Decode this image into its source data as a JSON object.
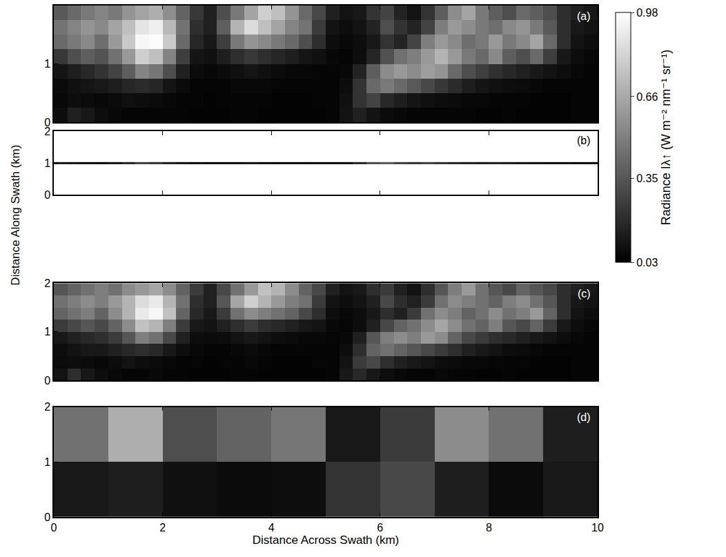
{
  "chart_data": [
    {
      "type": "heatmap",
      "label": "(a)",
      "tick_labels": "y",
      "xlim": [
        0,
        10
      ],
      "ylim": [
        0,
        2
      ],
      "xticks": [
        0,
        2,
        4,
        6,
        8,
        10
      ],
      "yticks": [
        0,
        1,
        2
      ],
      "colorbar": {
        "title": "Radiance Iλ↑ (W m⁻² nm⁻¹ sr⁻¹)",
        "range": [
          0.03,
          0.98
        ],
        "ticks": [
          0.03,
          0.35,
          0.66,
          0.98
        ]
      },
      "x": [
        0,
        0.25,
        0.5,
        0.75,
        1,
        1.25,
        1.5,
        1.75,
        2,
        2.25,
        2.5,
        2.75,
        3,
        3.25,
        3.5,
        3.75,
        4,
        4.25,
        4.5,
        4.75,
        5,
        5.25,
        5.5,
        5.75,
        6,
        6.25,
        6.5,
        6.75,
        7,
        7.25,
        7.5,
        7.75,
        8,
        8.25,
        8.5,
        8.75,
        9,
        9.25,
        9.5,
        9.75,
        10
      ],
      "y": [
        0,
        0.25,
        0.5,
        0.75,
        1,
        1.25,
        1.5,
        1.75,
        2
      ],
      "z": [
        [
          0.08,
          0.15,
          0.12,
          0.08,
          0.06,
          0.05,
          0.05,
          0.05,
          0.05,
          0.05,
          0.04,
          0.04,
          0.04,
          0.05,
          0.05,
          0.04,
          0.04,
          0.04,
          0.04,
          0.04,
          0.05,
          0.1,
          0.15,
          0.1,
          0.07,
          0.06,
          0.05,
          0.05,
          0.05,
          0.05,
          0.05,
          0.04,
          0.04,
          0.05,
          0.04,
          0.04,
          0.04,
          0.04,
          0.05,
          0.05
        ],
        [
          0.06,
          0.08,
          0.07,
          0.06,
          0.07,
          0.09,
          0.08,
          0.07,
          0.06,
          0.05,
          0.05,
          0.04,
          0.05,
          0.05,
          0.05,
          0.05,
          0.04,
          0.04,
          0.04,
          0.05,
          0.05,
          0.09,
          0.22,
          0.28,
          0.18,
          0.14,
          0.11,
          0.09,
          0.08,
          0.07,
          0.06,
          0.06,
          0.05,
          0.05,
          0.05,
          0.04,
          0.04,
          0.04,
          0.05,
          0.05
        ],
        [
          0.07,
          0.09,
          0.11,
          0.12,
          0.14,
          0.17,
          0.19,
          0.17,
          0.11,
          0.07,
          0.05,
          0.05,
          0.05,
          0.06,
          0.06,
          0.06,
          0.05,
          0.05,
          0.05,
          0.05,
          0.05,
          0.08,
          0.22,
          0.42,
          0.48,
          0.42,
          0.36,
          0.3,
          0.24,
          0.19,
          0.14,
          0.11,
          0.09,
          0.08,
          0.07,
          0.06,
          0.05,
          0.05,
          0.05,
          0.05
        ],
        [
          0.11,
          0.14,
          0.18,
          0.22,
          0.28,
          0.38,
          0.52,
          0.47,
          0.32,
          0.15,
          0.07,
          0.06,
          0.07,
          0.09,
          0.11,
          0.09,
          0.07,
          0.06,
          0.06,
          0.05,
          0.05,
          0.06,
          0.16,
          0.38,
          0.55,
          0.6,
          0.55,
          0.62,
          0.58,
          0.42,
          0.32,
          0.26,
          0.21,
          0.18,
          0.15,
          0.12,
          0.1,
          0.08,
          0.06,
          0.05
        ],
        [
          0.24,
          0.32,
          0.38,
          0.34,
          0.45,
          0.6,
          0.8,
          0.74,
          0.52,
          0.26,
          0.11,
          0.09,
          0.14,
          0.2,
          0.24,
          0.2,
          0.17,
          0.14,
          0.11,
          0.09,
          0.06,
          0.05,
          0.08,
          0.17,
          0.33,
          0.45,
          0.5,
          0.6,
          0.7,
          0.6,
          0.48,
          0.42,
          0.54,
          0.38,
          0.32,
          0.42,
          0.26,
          0.12,
          0.08,
          0.06
        ],
        [
          0.42,
          0.48,
          0.54,
          0.44,
          0.6,
          0.78,
          0.95,
          0.97,
          0.78,
          0.42,
          0.17,
          0.12,
          0.26,
          0.48,
          0.58,
          0.54,
          0.48,
          0.42,
          0.32,
          0.2,
          0.08,
          0.06,
          0.08,
          0.12,
          0.22,
          0.16,
          0.28,
          0.5,
          0.6,
          0.54,
          0.44,
          0.48,
          0.6,
          0.48,
          0.54,
          0.64,
          0.42,
          0.2,
          0.1,
          0.08
        ],
        [
          0.46,
          0.52,
          0.58,
          0.54,
          0.64,
          0.74,
          0.88,
          0.92,
          0.72,
          0.46,
          0.2,
          0.15,
          0.38,
          0.7,
          0.85,
          0.74,
          0.64,
          0.52,
          0.46,
          0.25,
          0.1,
          0.08,
          0.1,
          0.16,
          0.32,
          0.22,
          0.16,
          0.28,
          0.5,
          0.6,
          0.55,
          0.48,
          0.44,
          0.54,
          0.58,
          0.48,
          0.36,
          0.2,
          0.12,
          0.1
        ],
        [
          0.36,
          0.42,
          0.48,
          0.52,
          0.48,
          0.58,
          0.64,
          0.68,
          0.56,
          0.4,
          0.24,
          0.15,
          0.32,
          0.48,
          0.64,
          0.8,
          0.74,
          0.58,
          0.42,
          0.3,
          0.15,
          0.1,
          0.12,
          0.22,
          0.28,
          0.16,
          0.1,
          0.22,
          0.38,
          0.55,
          0.64,
          0.48,
          0.38,
          0.32,
          0.42,
          0.38,
          0.32,
          0.2,
          0.15,
          0.12
        ]
      ]
    },
    {
      "type": "heatmap",
      "label": "(b)",
      "tick_labels": "y",
      "ylabel": "Distance Along Swath (km)",
      "xlim": [
        0,
        10
      ],
      "ylim": [
        0,
        2
      ],
      "xticks": [
        0,
        2,
        4,
        6,
        8,
        10
      ],
      "yticks": [
        0,
        1,
        2
      ],
      "x": [
        0,
        0.25,
        0.5,
        0.75,
        1,
        1.25,
        1.5,
        1.75,
        2,
        2.25,
        2.5,
        2.75,
        3,
        3.25,
        3.5,
        3.75,
        4,
        4.25,
        4.5,
        4.75,
        5,
        5.25,
        5.5,
        5.75,
        6,
        6.25,
        6.5,
        6.75,
        7,
        7.25,
        7.5,
        7.75,
        8,
        8.25,
        8.5,
        8.75,
        9,
        9.25,
        9.5,
        9.75,
        10
      ],
      "y": [
        0.97,
        1.03
      ],
      "z": [
        [
          0.1,
          0.08,
          0.06,
          0.05,
          0.08,
          0.15,
          0.25,
          0.2,
          0.12,
          0.08,
          0.06,
          0.05,
          0.05,
          0.06,
          0.08,
          0.06,
          0.05,
          0.05,
          0.05,
          0.06,
          0.05,
          0.06,
          0.15,
          0.3,
          0.35,
          0.25,
          0.2,
          0.25,
          0.2,
          0.15,
          0.12,
          0.1,
          0.12,
          0.1,
          0.08,
          0.07,
          0.06,
          0.06,
          0.05,
          0.05
        ]
      ]
    },
    {
      "type": "heatmap",
      "label": "(c)",
      "tick_labels": "y",
      "xlim": [
        0,
        10
      ],
      "ylim": [
        0,
        2
      ],
      "xticks": [
        0,
        2,
        4,
        6,
        8,
        10
      ],
      "yticks": [
        0,
        1,
        2
      ],
      "x": [
        0,
        0.25,
        0.5,
        0.75,
        1,
        1.25,
        1.5,
        1.75,
        2,
        2.25,
        2.5,
        2.75,
        3,
        3.25,
        3.5,
        3.75,
        4,
        4.25,
        4.5,
        4.75,
        5,
        5.25,
        5.5,
        5.75,
        6,
        6.25,
        6.5,
        6.75,
        7,
        7.25,
        7.5,
        7.75,
        8,
        8.25,
        8.5,
        8.75,
        9,
        9.25,
        9.5,
        9.75,
        10
      ],
      "y": [
        0,
        0.25,
        0.5,
        0.75,
        1,
        1.25,
        1.5,
        1.75,
        2
      ],
      "z": [
        [
          0.1,
          0.2,
          0.12,
          0.08,
          0.06,
          0.05,
          0.05,
          0.06,
          0.05,
          0.05,
          0.04,
          0.04,
          0.04,
          0.05,
          0.05,
          0.04,
          0.04,
          0.04,
          0.04,
          0.04,
          0.05,
          0.12,
          0.18,
          0.12,
          0.08,
          0.06,
          0.05,
          0.05,
          0.06,
          0.05,
          0.05,
          0.04,
          0.04,
          0.05,
          0.04,
          0.04,
          0.04,
          0.04,
          0.05,
          0.05
        ],
        [
          0.07,
          0.08,
          0.07,
          0.06,
          0.08,
          0.1,
          0.08,
          0.07,
          0.06,
          0.05,
          0.05,
          0.04,
          0.05,
          0.05,
          0.06,
          0.05,
          0.04,
          0.04,
          0.04,
          0.05,
          0.05,
          0.1,
          0.25,
          0.3,
          0.2,
          0.15,
          0.12,
          0.1,
          0.08,
          0.07,
          0.06,
          0.06,
          0.05,
          0.05,
          0.05,
          0.04,
          0.04,
          0.04,
          0.05,
          0.05
        ],
        [
          0.08,
          0.1,
          0.12,
          0.12,
          0.15,
          0.18,
          0.2,
          0.18,
          0.12,
          0.08,
          0.06,
          0.05,
          0.05,
          0.06,
          0.07,
          0.06,
          0.05,
          0.05,
          0.05,
          0.05,
          0.05,
          0.08,
          0.2,
          0.4,
          0.45,
          0.4,
          0.35,
          0.3,
          0.25,
          0.2,
          0.15,
          0.12,
          0.1,
          0.08,
          0.07,
          0.06,
          0.05,
          0.05,
          0.05,
          0.05
        ],
        [
          0.12,
          0.15,
          0.18,
          0.2,
          0.25,
          0.35,
          0.5,
          0.45,
          0.3,
          0.15,
          0.08,
          0.07,
          0.08,
          0.1,
          0.12,
          0.1,
          0.08,
          0.07,
          0.06,
          0.06,
          0.05,
          0.06,
          0.15,
          0.35,
          0.5,
          0.55,
          0.5,
          0.6,
          0.55,
          0.4,
          0.3,
          0.25,
          0.2,
          0.18,
          0.15,
          0.12,
          0.1,
          0.08,
          0.06,
          0.05
        ],
        [
          0.25,
          0.3,
          0.35,
          0.3,
          0.4,
          0.55,
          0.75,
          0.7,
          0.5,
          0.25,
          0.12,
          0.1,
          0.15,
          0.2,
          0.25,
          0.2,
          0.18,
          0.15,
          0.12,
          0.1,
          0.06,
          0.05,
          0.08,
          0.15,
          0.3,
          0.4,
          0.45,
          0.55,
          0.65,
          0.55,
          0.45,
          0.4,
          0.5,
          0.35,
          0.3,
          0.4,
          0.25,
          0.12,
          0.08,
          0.06
        ],
        [
          0.4,
          0.45,
          0.5,
          0.4,
          0.55,
          0.7,
          0.9,
          0.95,
          0.75,
          0.4,
          0.18,
          0.12,
          0.25,
          0.45,
          0.55,
          0.5,
          0.45,
          0.4,
          0.3,
          0.2,
          0.08,
          0.06,
          0.08,
          0.12,
          0.2,
          0.15,
          0.25,
          0.45,
          0.55,
          0.5,
          0.4,
          0.45,
          0.55,
          0.45,
          0.5,
          0.6,
          0.4,
          0.2,
          0.1,
          0.08
        ],
        [
          0.45,
          0.5,
          0.55,
          0.5,
          0.6,
          0.7,
          0.85,
          0.9,
          0.7,
          0.45,
          0.2,
          0.15,
          0.35,
          0.65,
          0.8,
          0.7,
          0.6,
          0.5,
          0.45,
          0.25,
          0.1,
          0.08,
          0.1,
          0.15,
          0.3,
          0.2,
          0.15,
          0.25,
          0.45,
          0.55,
          0.5,
          0.45,
          0.4,
          0.5,
          0.55,
          0.45,
          0.35,
          0.2,
          0.12,
          0.1
        ],
        [
          0.35,
          0.4,
          0.45,
          0.5,
          0.45,
          0.55,
          0.6,
          0.65,
          0.55,
          0.4,
          0.25,
          0.15,
          0.3,
          0.45,
          0.6,
          0.75,
          0.7,
          0.55,
          0.4,
          0.3,
          0.15,
          0.1,
          0.12,
          0.2,
          0.25,
          0.15,
          0.1,
          0.2,
          0.35,
          0.5,
          0.6,
          0.45,
          0.35,
          0.3,
          0.4,
          0.35,
          0.3,
          0.2,
          0.15,
          0.12
        ]
      ]
    },
    {
      "type": "heatmap",
      "label": "(d)",
      "tick_labels": true,
      "xlabel": "Distance Across Swath (km)",
      "xlim": [
        0,
        10
      ],
      "ylim": [
        0,
        2
      ],
      "xticks": [
        0,
        2,
        4,
        6,
        8,
        10
      ],
      "yticks": [
        0,
        1,
        2
      ],
      "x": [
        0,
        1,
        2,
        3,
        4,
        5,
        6,
        7,
        8,
        9,
        10
      ],
      "y": [
        0,
        1,
        2
      ],
      "z": [
        [
          0.12,
          0.14,
          0.09,
          0.07,
          0.08,
          0.22,
          0.3,
          0.14,
          0.07,
          0.12
        ],
        [
          0.45,
          0.68,
          0.32,
          0.4,
          0.47,
          0.12,
          0.25,
          0.55,
          0.45,
          0.14
        ]
      ]
    }
  ]
}
